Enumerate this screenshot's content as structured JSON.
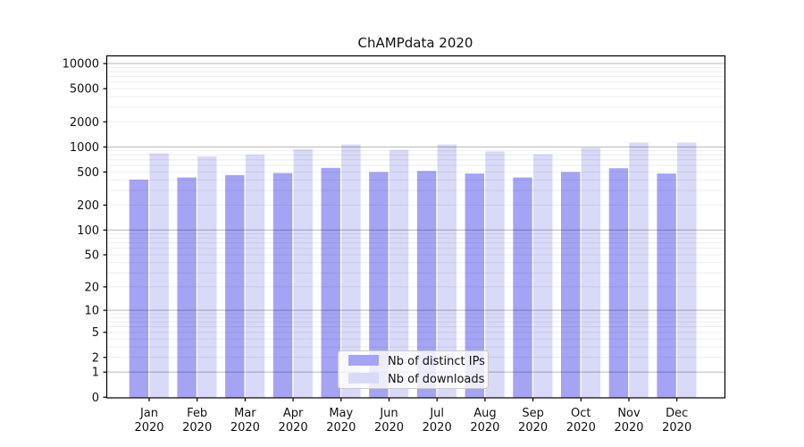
{
  "chart_data": {
    "type": "bar",
    "title": "ChAMPdata 2020",
    "year_label": "2020",
    "categories": [
      "Jan",
      "Feb",
      "Mar",
      "Apr",
      "May",
      "Jun",
      "Jul",
      "Aug",
      "Sep",
      "Oct",
      "Nov",
      "Dec"
    ],
    "series": [
      {
        "name": "Nb of distinct IPs",
        "color": "#a4a4f4",
        "values": [
          405,
          430,
          460,
          485,
          560,
          500,
          515,
          480,
          430,
          500,
          555,
          480
        ]
      },
      {
        "name": "Nb of downloads",
        "color": "#d9d9f8",
        "values": [
          840,
          770,
          810,
          940,
          1070,
          920,
          1070,
          880,
          820,
          975,
          1130,
          1130
        ]
      }
    ],
    "yscale": "symlog (log10 of value+1)",
    "yticks": [
      0,
      1,
      2,
      5,
      10,
      20,
      50,
      100,
      200,
      500,
      1000,
      2000,
      5000,
      10000
    ],
    "ytick_labels": [
      "0",
      "1",
      "2",
      "5",
      "10",
      "20",
      "50",
      "100",
      "200",
      "500",
      "1000",
      "2000",
      "5000",
      "10000"
    ],
    "ylim": [
      0,
      12300
    ],
    "grid": "on",
    "legend_position": "bottom-center",
    "colors": {
      "major_gridline": "rgba(0,0,0,0.25)",
      "minor_gridline": "rgba(0,0,0,0.07)",
      "axis": "#000000",
      "legend_border": "#cccccc",
      "legend_background": "rgba(255,255,255,0.8)"
    }
  }
}
